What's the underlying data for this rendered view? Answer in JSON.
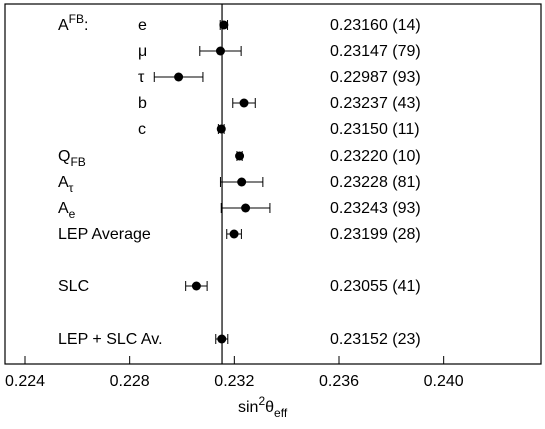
{
  "chart_data": {
    "type": "scatter",
    "title": "",
    "xlabel": "sin2θeff",
    "ylabel": "",
    "xlim": [
      0.224,
      0.242
    ],
    "xticks": [
      "0.224",
      "0.228",
      "0.232",
      "0.236",
      "0.240"
    ],
    "xtick_values": [
      0.224,
      0.228,
      0.232,
      0.236,
      0.24
    ],
    "reference_line": 0.23153,
    "group_label": "AFB:",
    "points": [
      {
        "label": "e",
        "value": 0.2316,
        "error": 0.00014,
        "text": "0.23160 (14)"
      },
      {
        "label": "μ",
        "value": 0.23147,
        "error": 0.00079,
        "text": "0.23147 (79)"
      },
      {
        "label": "τ",
        "value": 0.22987,
        "error": 0.00093,
        "text": "0.22987 (93)"
      },
      {
        "label": "b",
        "value": 0.23237,
        "error": 0.00043,
        "text": "0.23237 (43)"
      },
      {
        "label": "c",
        "value": 0.2315,
        "error": 0.00011,
        "text": "0.23150 (11)"
      },
      {
        "label": "QFB",
        "value": 0.2322,
        "error": 0.0001,
        "text": "0.23220 (10)"
      },
      {
        "label": "Aτ",
        "value": 0.23228,
        "error": 0.00081,
        "text": "0.23228 (81)"
      },
      {
        "label": "Ae",
        "value": 0.23243,
        "error": 0.00093,
        "text": "0.23243 (93)"
      },
      {
        "label": "LEP Average",
        "value": 0.23199,
        "error": 0.00028,
        "text": "0.23199 (28)"
      },
      {
        "label": "SLC",
        "value": 0.23055,
        "error": 0.00041,
        "text": "0.23055 (41)"
      },
      {
        "label": "LEP + SLC Av.",
        "value": 0.23152,
        "error": 0.00023,
        "text": "0.23152 (23)"
      }
    ]
  }
}
